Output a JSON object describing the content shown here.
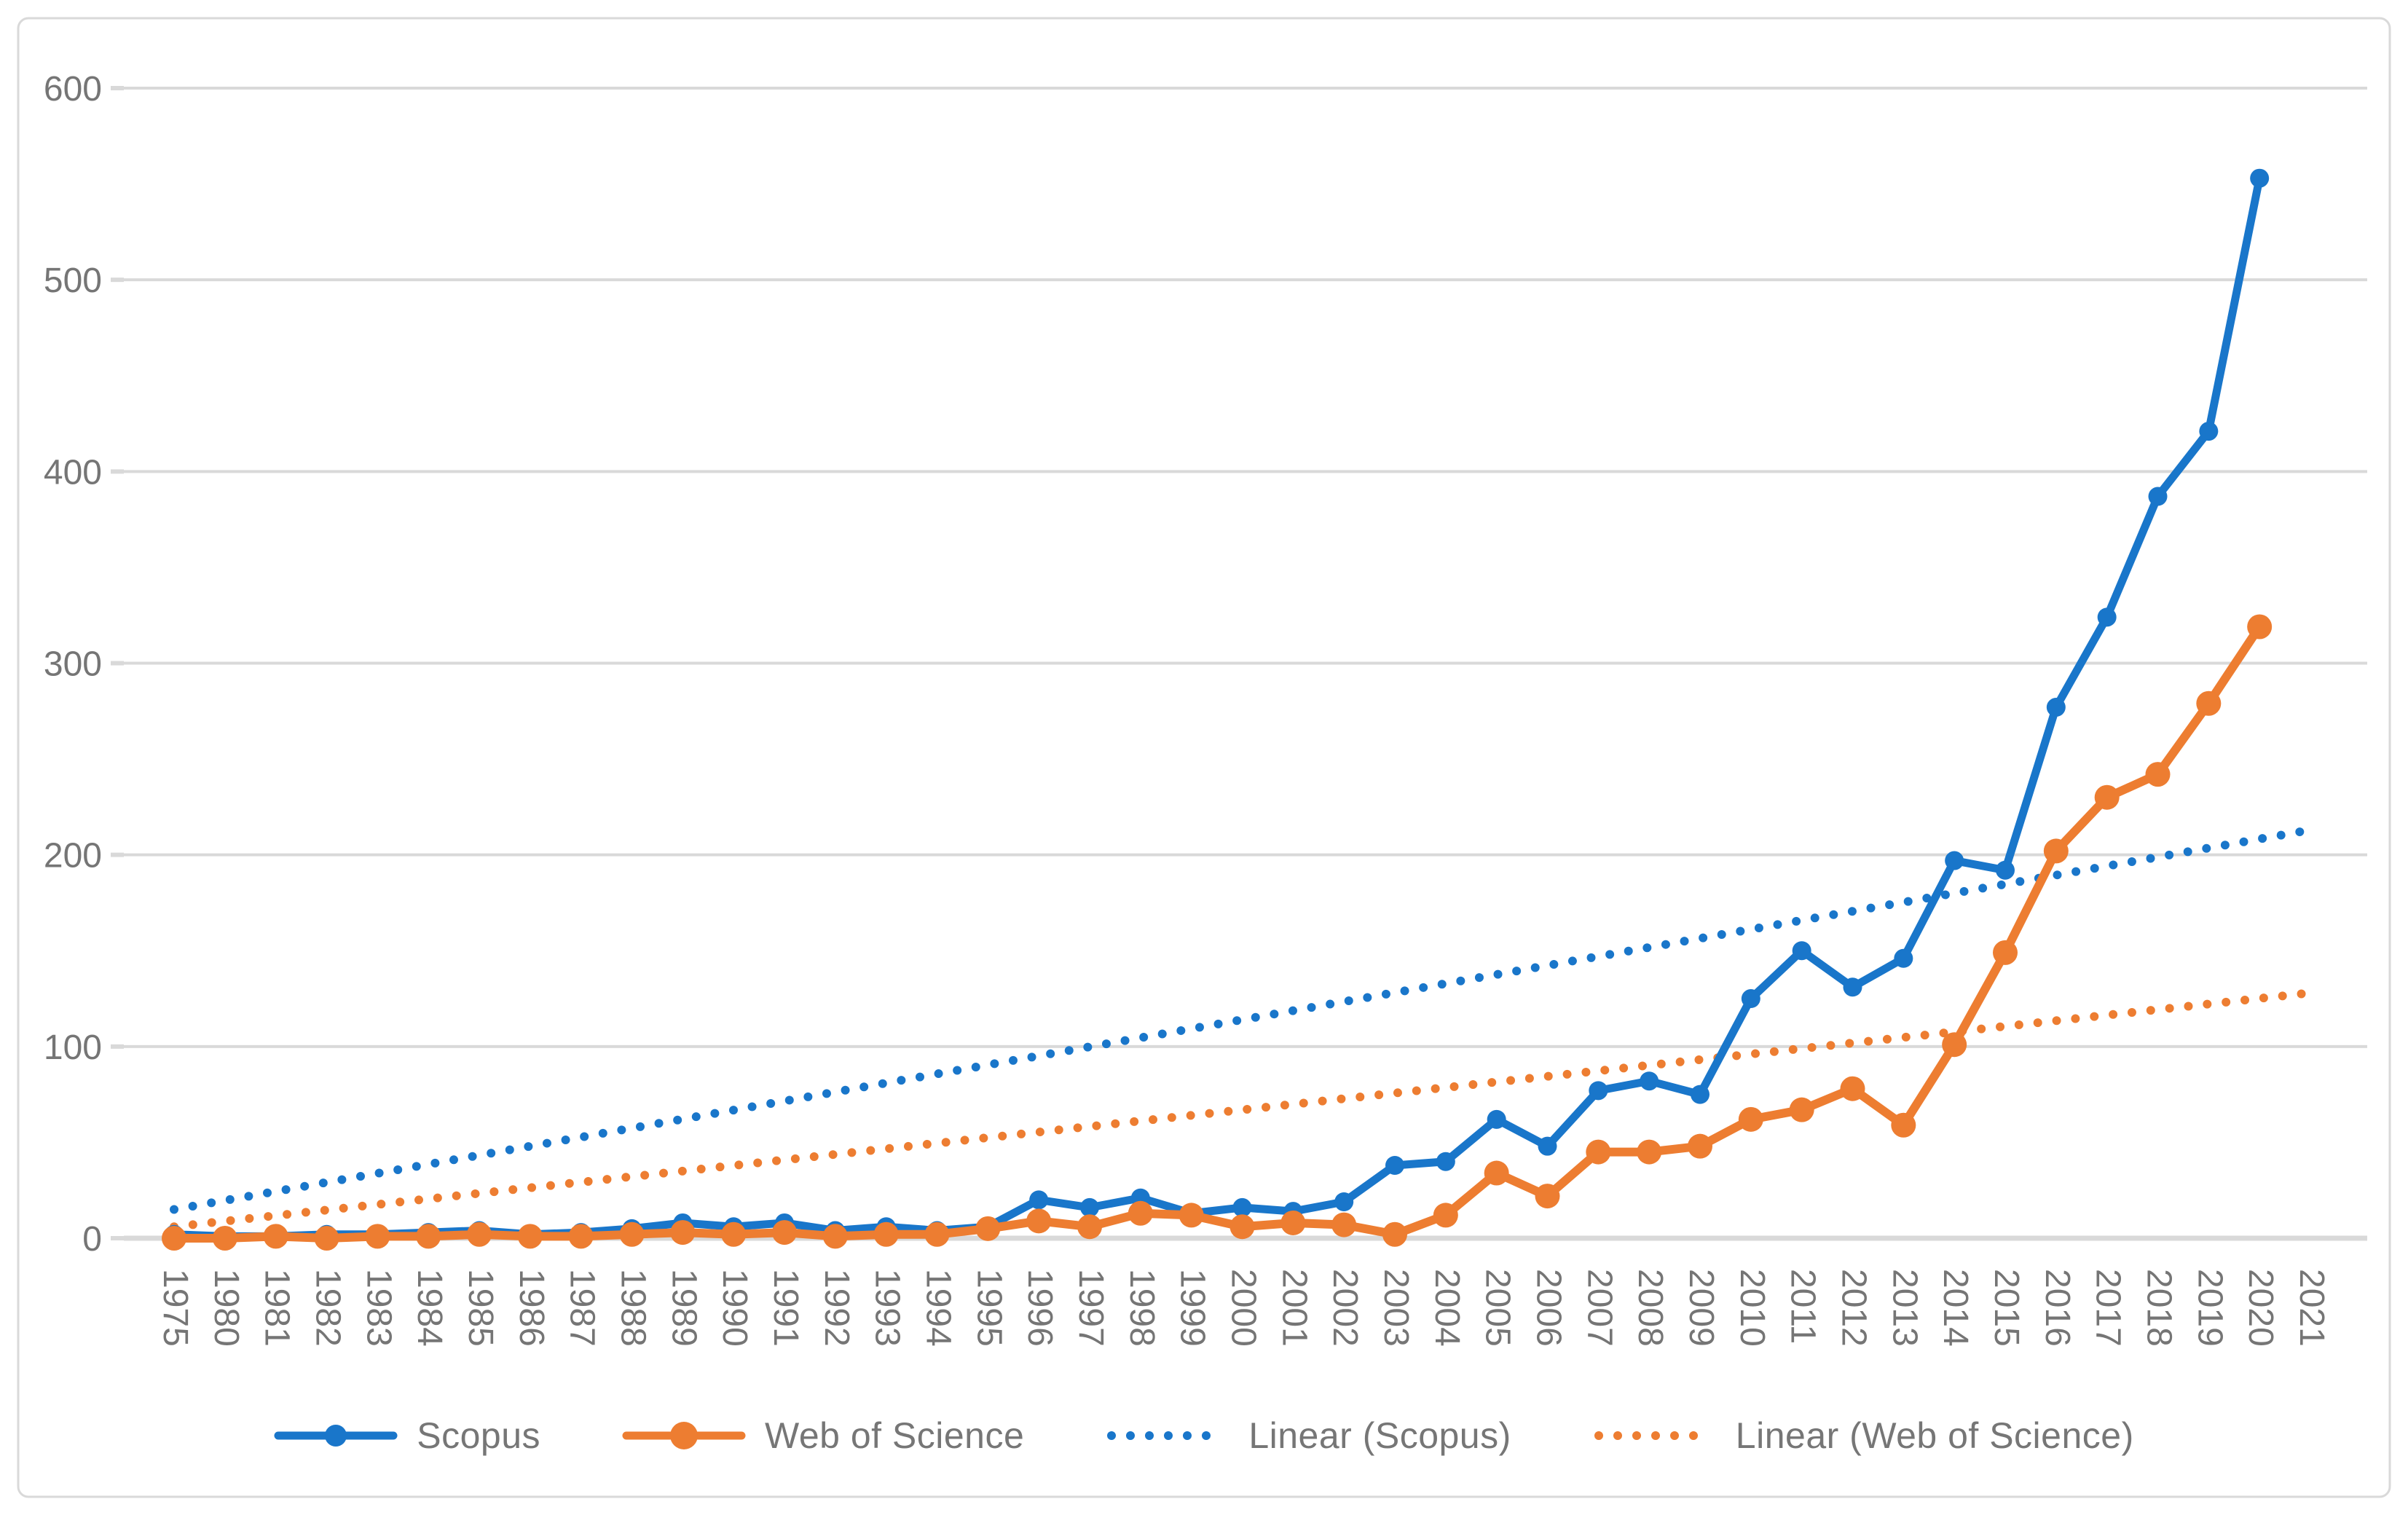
{
  "chart_data": {
    "type": "line",
    "title": "",
    "xlabel": "",
    "ylabel": "",
    "ylim": [
      0,
      600
    ],
    "yticks": [
      0,
      100,
      200,
      300,
      400,
      500,
      600
    ],
    "grid": true,
    "legend_position": "bottom",
    "categories": [
      "1975",
      "1980",
      "1981",
      "1982",
      "1983",
      "1984",
      "1985",
      "1986",
      "1987",
      "1988",
      "1989",
      "1990",
      "1991",
      "1992",
      "1993",
      "1994",
      "1995",
      "1996",
      "1997",
      "1998",
      "1999",
      "2000",
      "2001",
      "2002",
      "2003",
      "2004",
      "2005",
      "2006",
      "2007",
      "2008",
      "2009",
      "2010",
      "2011",
      "2012",
      "2013",
      "2014",
      "2015",
      "2016",
      "2017",
      "2018",
      "2019",
      "2020",
      "2021"
    ],
    "series": [
      {
        "name": "Scopus",
        "color": "#1976ca",
        "marker_radius": 13,
        "values": [
          2,
          1,
          1,
          2,
          2,
          3,
          4,
          2,
          3,
          5,
          8,
          6,
          8,
          4,
          6,
          4,
          6,
          20,
          16,
          21,
          13,
          16,
          14,
          19,
          38,
          40,
          62,
          48,
          77,
          82,
          75,
          125,
          150,
          131,
          146,
          197,
          192,
          277,
          324,
          387,
          421,
          553,
          null
        ]
      },
      {
        "name": "Web of Science",
        "color": "#ed7d31",
        "marker_radius": 17,
        "values": [
          0,
          0,
          1,
          0,
          1,
          1,
          2,
          1,
          1,
          2,
          3,
          2,
          3,
          1,
          2,
          2,
          5,
          9,
          6,
          13,
          12,
          6,
          8,
          7,
          2,
          12,
          34,
          22,
          45,
          45,
          48,
          62,
          67,
          78,
          59,
          101,
          149,
          202,
          230,
          242,
          279,
          319,
          null
        ]
      }
    ],
    "trendlines": [
      {
        "name": "Linear (Scopus)",
        "color": "#1976ca",
        "start_value": 15,
        "end_value": 213
      },
      {
        "name": "Linear (Web of Science)",
        "color": "#ed7d31",
        "start_value": 6,
        "end_value": 128
      }
    ],
    "axis_colors": {
      "gridline": "#d9d9d9",
      "tick_label": "#757575",
      "frame": "#d9d9d9"
    }
  },
  "legend": {
    "items": [
      {
        "label": "Scopus"
      },
      {
        "label": "Web of Science"
      },
      {
        "label": "Linear (Scopus)"
      },
      {
        "label": "Linear (Web of Science)"
      }
    ]
  }
}
